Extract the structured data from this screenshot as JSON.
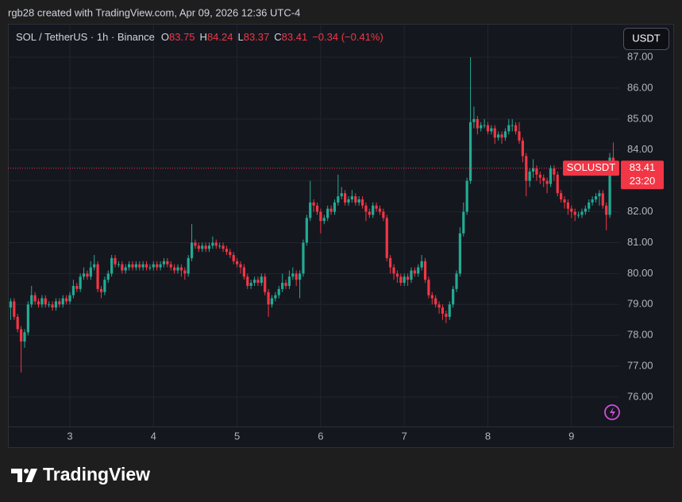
{
  "header": {
    "title": "rgb28 created with TradingView.com, Apr 09, 2026 12:36 UTC-4"
  },
  "button": {
    "label": "USDT"
  },
  "footer": {
    "brand": "TradingView"
  },
  "chart_data": {
    "type": "candlestick",
    "legend": {
      "symbol": "SOL / TetherUS · 1h · Binance",
      "o": "O",
      "h": "H",
      "l": "L",
      "c": "C",
      "change": "−0.34 (−0.41%)"
    },
    "last_price_tag": {
      "symbol": "SOLUSDT",
      "countdown": "23:20"
    },
    "up_color": "#22ab94",
    "down_color": "#f23645",
    "grid": true,
    "ylim": [
      75.05,
      88.08
    ],
    "yticks": [
      {
        "value": 76,
        "label": "76.00"
      },
      {
        "value": 77,
        "label": "77.00"
      },
      {
        "value": 78,
        "label": "78.00"
      },
      {
        "value": 79,
        "label": "79.00"
      },
      {
        "value": 80,
        "label": "80.00"
      },
      {
        "value": 81,
        "label": "81.00"
      },
      {
        "value": 82,
        "label": "82.00"
      },
      {
        "value": 83,
        "label": "83.00"
      },
      {
        "value": 84,
        "label": "84.00"
      },
      {
        "value": 85,
        "label": "85.00"
      },
      {
        "value": 86,
        "label": "86.00"
      },
      {
        "value": 87,
        "label": "87.00"
      }
    ],
    "categories": [
      null,
      null,
      null,
      null,
      null,
      null,
      null,
      null,
      null,
      null,
      null,
      null,
      null,
      null,
      null,
      null,
      null,
      "3",
      null,
      null,
      null,
      null,
      null,
      null,
      null,
      null,
      null,
      null,
      null,
      null,
      null,
      null,
      null,
      null,
      null,
      null,
      null,
      null,
      null,
      null,
      null,
      "4",
      null,
      null,
      null,
      null,
      null,
      null,
      null,
      null,
      null,
      null,
      null,
      null,
      null,
      null,
      null,
      null,
      null,
      null,
      null,
      null,
      null,
      null,
      null,
      "5",
      null,
      null,
      null,
      null,
      null,
      null,
      null,
      null,
      null,
      null,
      null,
      null,
      null,
      null,
      null,
      null,
      null,
      null,
      null,
      null,
      null,
      null,
      null,
      "6",
      null,
      null,
      null,
      null,
      null,
      null,
      null,
      null,
      null,
      null,
      null,
      null,
      null,
      null,
      null,
      null,
      null,
      null,
      null,
      null,
      null,
      null,
      null,
      "7",
      null,
      null,
      null,
      null,
      null,
      null,
      null,
      null,
      null,
      null,
      null,
      null,
      null,
      null,
      null,
      null,
      null,
      null,
      null,
      null,
      null,
      null,
      null,
      "8",
      null,
      null,
      null,
      null,
      null,
      null,
      null,
      null,
      null,
      null,
      null,
      null,
      null,
      null,
      null,
      null,
      null,
      null,
      null,
      null,
      null,
      null,
      null,
      "9",
      null,
      null,
      null,
      null,
      null,
      null,
      null,
      null,
      null,
      null,
      null,
      null
    ],
    "open": [
      78.9,
      79.1,
      78.6,
      78.2,
      77.8,
      78.1,
      79.0,
      79.3,
      79.1,
      79.0,
      79.2,
      79.0,
      79.0,
      78.9,
      79.1,
      79.0,
      79.2,
      79.1,
      79.3,
      79.6,
      79.5,
      79.9,
      80.0,
      79.9,
      80.2,
      80.3,
      79.5,
      79.4,
      79.8,
      80.0,
      80.5,
      80.3,
      80.3,
      80.1,
      80.2,
      80.3,
      80.2,
      80.3,
      80.2,
      80.3,
      80.2,
      80.2,
      80.3,
      80.2,
      80.3,
      80.4,
      80.3,
      80.2,
      80.1,
      80.2,
      80.1,
      80.0,
      80.5,
      81.0,
      80.9,
      80.8,
      80.9,
      80.8,
      80.9,
      81.0,
      80.9,
      80.9,
      80.8,
      80.7,
      80.6,
      80.4,
      80.3,
      80.2,
      79.9,
      79.6,
      79.7,
      79.8,
      79.7,
      79.9,
      79.4,
      79.0,
      79.2,
      79.3,
      79.5,
      79.7,
      79.6,
      79.9,
      80.0,
      79.8,
      80.0,
      81.0,
      81.8,
      82.3,
      82.2,
      82.0,
      81.7,
      81.8,
      82.1,
      82.0,
      82.3,
      82.5,
      82.6,
      82.3,
      82.4,
      82.5,
      82.3,
      82.4,
      82.2,
      82.0,
      81.9,
      82.2,
      82.1,
      82.0,
      81.8,
      80.5,
      80.2,
      80.0,
      79.9,
      79.7,
      79.9,
      79.8,
      80.1,
      80.0,
      80.2,
      80.4,
      79.8,
      79.3,
      79.2,
      79.0,
      78.9,
      78.7,
      78.6,
      79.0,
      79.5,
      80.0,
      81.3,
      82.0,
      83.0,
      84.9,
      85.0,
      84.7,
      84.8,
      84.8,
      84.6,
      84.7,
      84.4,
      84.5,
      84.4,
      84.6,
      84.8,
      84.8,
      84.6,
      84.3,
      83.8,
      83.0,
      83.3,
      83.4,
      83.2,
      83.1,
      83.0,
      82.9,
      83.4,
      83.2,
      82.6,
      82.4,
      82.3,
      82.1,
      82.0,
      81.9,
      81.9,
      82.0,
      82.1,
      82.3,
      82.4,
      82.5,
      82.6,
      82.2,
      81.9,
      83.75
    ],
    "high": [
      79.2,
      79.2,
      78.7,
      78.3,
      78.2,
      79.1,
      79.6,
      79.4,
      79.2,
      79.3,
      79.3,
      79.1,
      79.1,
      79.2,
      79.2,
      79.3,
      79.3,
      79.4,
      79.8,
      79.7,
      80.0,
      80.2,
      80.1,
      80.4,
      80.6,
      80.4,
      79.6,
      79.9,
      80.1,
      80.6,
      80.6,
      80.4,
      80.4,
      80.3,
      80.4,
      80.4,
      80.4,
      80.4,
      80.4,
      80.4,
      80.3,
      80.4,
      80.4,
      80.4,
      80.5,
      80.5,
      80.4,
      80.3,
      80.3,
      80.3,
      80.2,
      80.6,
      81.6,
      81.1,
      81.0,
      81.0,
      81.0,
      81.0,
      81.2,
      81.1,
      81.0,
      81.0,
      80.9,
      80.8,
      80.7,
      80.5,
      80.4,
      80.3,
      80.0,
      79.8,
      79.9,
      79.9,
      80.0,
      80.0,
      79.5,
      79.3,
      79.4,
      79.6,
      80.0,
      79.8,
      80.1,
      80.2,
      80.1,
      80.1,
      81.1,
      81.9,
      83.0,
      82.4,
      82.3,
      82.1,
      81.9,
      82.2,
      82.2,
      82.4,
      83.2,
      82.8,
      82.7,
      82.5,
      82.7,
      82.6,
      82.5,
      82.5,
      82.3,
      82.1,
      82.3,
      82.3,
      82.2,
      82.1,
      81.9,
      80.6,
      80.3,
      80.1,
      80.0,
      80.0,
      80.0,
      80.2,
      80.2,
      80.3,
      80.6,
      80.5,
      79.9,
      79.4,
      79.3,
      79.1,
      79.0,
      78.8,
      79.1,
      79.6,
      80.1,
      81.5,
      82.3,
      83.1,
      87.0,
      85.4,
      85.1,
      84.9,
      85.0,
      84.9,
      84.8,
      84.8,
      84.6,
      84.6,
      84.7,
      85.0,
      85.0,
      84.9,
      84.9,
      84.4,
      83.9,
      83.4,
      83.7,
      83.5,
      83.3,
      83.2,
      83.1,
      83.5,
      83.5,
      83.3,
      82.7,
      82.5,
      82.4,
      82.2,
      82.1,
      82.0,
      82.1,
      82.2,
      82.4,
      82.5,
      82.6,
      82.7,
      82.7,
      82.3,
      83.9,
      84.24
    ],
    "low": [
      78.5,
      78.5,
      78.1,
      76.8,
      77.6,
      78.0,
      78.9,
      79.0,
      78.9,
      78.9,
      78.9,
      78.9,
      78.8,
      78.8,
      78.9,
      78.9,
      79.0,
      79.0,
      79.2,
      79.4,
      79.4,
      79.8,
      79.8,
      79.8,
      80.1,
      79.4,
      79.2,
      79.3,
      79.7,
      79.9,
      80.2,
      80.2,
      80.0,
      80.0,
      80.1,
      80.1,
      80.1,
      80.1,
      80.1,
      80.1,
      80.1,
      80.1,
      80.1,
      80.1,
      80.2,
      80.2,
      80.1,
      80.0,
      80.0,
      79.9,
      79.8,
      79.9,
      80.4,
      80.8,
      80.7,
      80.7,
      80.7,
      80.7,
      80.8,
      80.8,
      80.8,
      80.7,
      80.6,
      80.5,
      80.3,
      80.2,
      80.0,
      79.8,
      79.5,
      79.5,
      79.6,
      79.6,
      79.6,
      79.3,
      78.6,
      78.9,
      79.1,
      79.2,
      79.4,
      79.5,
      79.5,
      79.8,
      79.6,
      79.2,
      79.9,
      80.9,
      81.7,
      82.0,
      81.9,
      81.3,
      81.6,
      81.7,
      81.9,
      81.9,
      82.2,
      82.4,
      82.2,
      82.2,
      82.3,
      82.2,
      82.2,
      82.1,
      81.7,
      81.8,
      81.8,
      82.0,
      81.9,
      81.7,
      80.4,
      80.0,
      79.8,
      79.7,
      79.6,
      79.6,
      79.6,
      79.7,
      79.9,
      79.9,
      80.1,
      79.7,
      79.2,
      79.0,
      78.9,
      78.7,
      78.5,
      78.4,
      78.5,
      78.9,
      79.4,
      79.9,
      81.2,
      81.9,
      82.9,
      84.7,
      84.5,
      84.6,
      84.7,
      84.5,
      84.5,
      84.2,
      84.3,
      84.2,
      84.3,
      84.5,
      84.6,
      84.5,
      84.2,
      83.6,
      82.5,
      82.8,
      83.1,
      83.0,
      82.9,
      82.8,
      82.6,
      82.8,
      83.0,
      82.5,
      82.3,
      82.1,
      81.9,
      81.8,
      81.7,
      81.8,
      81.8,
      81.9,
      82.0,
      82.2,
      82.3,
      82.2,
      82.1,
      81.4,
      81.8,
      83.37
    ],
    "close": [
      79.1,
      78.6,
      78.2,
      77.8,
      78.1,
      79.0,
      79.3,
      79.1,
      79.0,
      79.2,
      79.0,
      79.0,
      78.9,
      79.1,
      79.0,
      79.2,
      79.1,
      79.3,
      79.6,
      79.5,
      79.9,
      80.0,
      79.9,
      80.2,
      80.3,
      79.5,
      79.4,
      79.8,
      80.0,
      80.5,
      80.3,
      80.3,
      80.1,
      80.2,
      80.3,
      80.2,
      80.3,
      80.2,
      80.3,
      80.2,
      80.2,
      80.3,
      80.2,
      80.3,
      80.4,
      80.3,
      80.2,
      80.1,
      80.2,
      80.1,
      80.0,
      80.5,
      81.0,
      80.9,
      80.8,
      80.9,
      80.8,
      80.9,
      81.0,
      80.9,
      80.9,
      80.8,
      80.7,
      80.6,
      80.4,
      80.3,
      80.2,
      79.9,
      79.6,
      79.7,
      79.8,
      79.7,
      79.9,
      79.4,
      79.0,
      79.2,
      79.3,
      79.5,
      79.7,
      79.6,
      79.9,
      80.0,
      79.8,
      80.0,
      81.0,
      81.8,
      82.3,
      82.2,
      82.0,
      81.7,
      81.8,
      82.1,
      82.0,
      82.3,
      82.5,
      82.6,
      82.3,
      82.4,
      82.5,
      82.3,
      82.4,
      82.2,
      82.0,
      81.9,
      82.2,
      82.1,
      82.0,
      81.8,
      80.5,
      80.2,
      80.0,
      79.9,
      79.7,
      79.9,
      79.8,
      80.1,
      80.0,
      80.2,
      80.4,
      79.8,
      79.3,
      79.2,
      79.0,
      78.9,
      78.7,
      78.6,
      79.0,
      79.5,
      80.0,
      81.3,
      82.0,
      83.0,
      84.9,
      85.0,
      84.7,
      84.8,
      84.8,
      84.6,
      84.7,
      84.4,
      84.5,
      84.4,
      84.6,
      84.8,
      84.8,
      84.6,
      84.3,
      83.8,
      83.0,
      83.3,
      83.4,
      83.2,
      83.1,
      83.0,
      82.9,
      83.4,
      83.2,
      82.6,
      82.4,
      82.3,
      82.1,
      82.0,
      81.9,
      81.9,
      82.0,
      82.1,
      82.3,
      82.4,
      82.5,
      82.6,
      82.2,
      81.9,
      83.75,
      83.41
    ]
  }
}
